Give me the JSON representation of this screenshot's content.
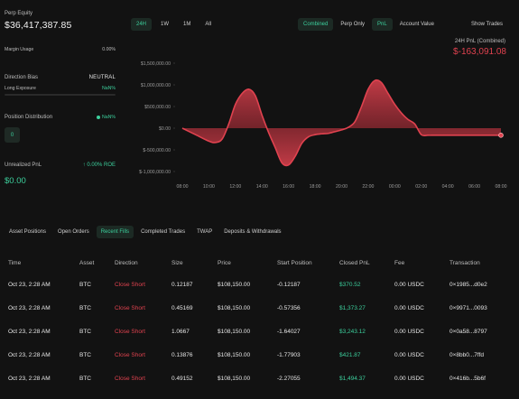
{
  "left_panel": {
    "perp_equity_label": "Perp Equity",
    "perp_equity_value": "$36,417,387.85",
    "margin_usage_label": "Margin Usage",
    "margin_usage_value": "0.00%",
    "direction_bias_label": "Direction Bias",
    "direction_bias_value": "NEUTRAL",
    "long_exposure_label": "Long Exposure",
    "long_exposure_value": "NaN%",
    "position_distribution_label": "Position Distribution",
    "position_distribution_value": "NaN%",
    "position_count": "0",
    "unrealized_pnl_label": "Unrealized PnL",
    "unrealized_roe": "0.00% ROE",
    "unrealized_pnl_value": "$0.00"
  },
  "chart_header": {
    "range_tabs": [
      "24H",
      "1W",
      "1M",
      "All"
    ],
    "active_range": "24H",
    "view_tabs": [
      "Combined",
      "Perp Only",
      "PnL",
      "Account Value"
    ],
    "active_views": [
      "Combined",
      "PnL"
    ],
    "show_trades": "Show Trades",
    "pnl_title": "24H PnL (Combined)",
    "pnl_value": "$-163,091.08"
  },
  "colors": {
    "accent": "#3ccf9c",
    "negative": "#e0424f",
    "background": "#121212"
  },
  "chart_data": {
    "type": "area",
    "y_ticks": [
      "$1,500,000.00",
      "$1,000,000.00",
      "$500,000.00",
      "$0.00",
      "$-500,000.00",
      "$-1,000,000.00"
    ],
    "y_tick_values": [
      1500000,
      1000000,
      500000,
      0,
      -500000,
      -1000000
    ],
    "ylim": [
      -1000000,
      1500000
    ],
    "x_ticks": [
      "08:00",
      "10:00",
      "12:00",
      "14:00",
      "16:00",
      "18:00",
      "20:00",
      "22:00",
      "00:00",
      "02:00",
      "04:00",
      "06:00",
      "08:00"
    ],
    "x": [
      "08:00",
      "09:00",
      "10:00",
      "10:30",
      "11:00",
      "11:30",
      "12:00",
      "12:30",
      "13:00",
      "13:30",
      "14:00",
      "14:30",
      "15:00",
      "15:30",
      "16:00",
      "16:30",
      "17:00",
      "17:30",
      "18:00",
      "18:30",
      "19:00",
      "19:30",
      "20:00",
      "20:30",
      "21:00",
      "21:30",
      "22:00",
      "22:30",
      "23:00",
      "23:30",
      "00:00",
      "00:30",
      "01:00",
      "01:30",
      "02:00",
      "02:30",
      "03:00",
      "04:00",
      "05:00",
      "06:00",
      "07:00",
      "08:00"
    ],
    "values": [
      0,
      -150000,
      -300000,
      -330000,
      -250000,
      100000,
      550000,
      800000,
      900000,
      750000,
      300000,
      -100000,
      -450000,
      -800000,
      -850000,
      -650000,
      -350000,
      -200000,
      -150000,
      -130000,
      -120000,
      -80000,
      -40000,
      20000,
      150000,
      500000,
      900000,
      1100000,
      1050000,
      800000,
      550000,
      350000,
      200000,
      100000,
      -150000,
      -163000,
      -163000,
      -163000,
      -163000,
      -163000,
      -163000,
      -163091
    ],
    "grid": false,
    "legend": "none"
  },
  "bottom_tabs": [
    "Asset Positions",
    "Open Orders",
    "Recent Fills",
    "Completed Trades",
    "TWAP",
    "Deposits & Withdrawals"
  ],
  "active_bottom_tab": "Recent Fills",
  "table": {
    "headers": [
      "Time",
      "Asset",
      "Direction",
      "Size",
      "Price",
      "Start Position",
      "Closed PnL",
      "Fee",
      "Transaction"
    ],
    "rows": [
      [
        "Oct 23, 2:28 AM",
        "BTC",
        "Close Short",
        "0.12187",
        "$108,150.00",
        "-0.12187",
        "$370.52",
        "0.00 USDC",
        "0×1985...d0e2"
      ],
      [
        "Oct 23, 2:28 AM",
        "BTC",
        "Close Short",
        "0.45169",
        "$108,150.00",
        "-0.57356",
        "$1,373.27",
        "0.00 USDC",
        "0×9971...0093"
      ],
      [
        "Oct 23, 2:28 AM",
        "BTC",
        "Close Short",
        "1.0667",
        "$108,150.00",
        "-1.64027",
        "$3,243.12",
        "0.00 USDC",
        "0×0a58...8797"
      ],
      [
        "Oct 23, 2:28 AM",
        "BTC",
        "Close Short",
        "0.13876",
        "$108,150.00",
        "-1.77903",
        "$421.87",
        "0.00 USDC",
        "0×8bb0...7ffd"
      ],
      [
        "Oct 23, 2:28 AM",
        "BTC",
        "Close Short",
        "0.49152",
        "$108,150.00",
        "-2.27055",
        "$1,494.37",
        "0.00 USDC",
        "0×416b...5b6f"
      ]
    ]
  }
}
